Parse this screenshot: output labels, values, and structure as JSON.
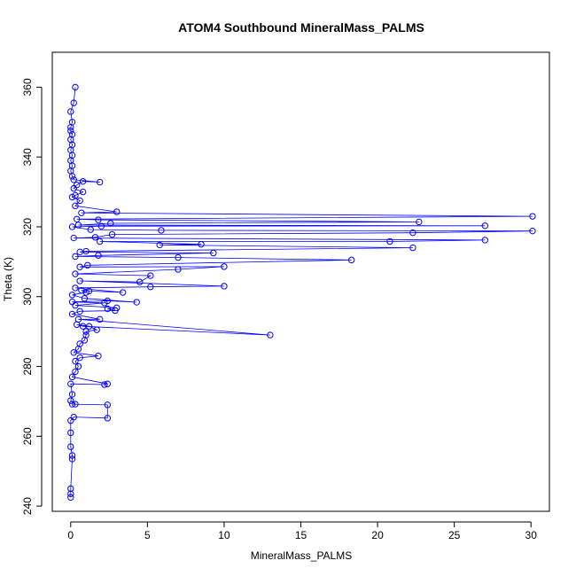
{
  "chart_data": {
    "type": "line",
    "title": "ATOM4 Southbound MineralMass_PALMS",
    "xlabel": "MineralMass_PALMS",
    "ylabel": "Theta (K)",
    "xlim": [
      -1.2,
      31.2
    ],
    "ylim": [
      238.5,
      370
    ],
    "xticks": [
      0,
      5,
      10,
      15,
      20,
      25,
      30
    ],
    "yticks": [
      240,
      260,
      280,
      300,
      320,
      340,
      360
    ],
    "grid": false,
    "legend": "none",
    "series": [
      {
        "color": "#0000ff",
        "marker": "open-circle",
        "points": [
          [
            0.0,
            242.5
          ],
          [
            0.0,
            243.5
          ],
          [
            0.0,
            245.0
          ],
          [
            0.1,
            253.5
          ],
          [
            0.1,
            254.5
          ],
          [
            0.0,
            257.0
          ],
          [
            0.0,
            261.0
          ],
          [
            0.0,
            264.5
          ],
          [
            0.2,
            265.5
          ],
          [
            2.4,
            265.2
          ],
          [
            2.4,
            269.0
          ],
          [
            0.1,
            269.2
          ],
          [
            0.3,
            269.2
          ],
          [
            0.0,
            270.2
          ],
          [
            0.1,
            272.0
          ],
          [
            0.0,
            275.0
          ],
          [
            2.2,
            274.8
          ],
          [
            2.4,
            275.0
          ],
          [
            0.1,
            277.0
          ],
          [
            0.3,
            278.5
          ],
          [
            0.5,
            280.0
          ],
          [
            0.3,
            281.5
          ],
          [
            0.6,
            282.5
          ],
          [
            1.8,
            283.0
          ],
          [
            0.2,
            284.0
          ],
          [
            0.5,
            285.0
          ],
          [
            0.6,
            286.5
          ],
          [
            0.9,
            287.5
          ],
          [
            1.0,
            289.0
          ],
          [
            1.0,
            290.0
          ],
          [
            1.7,
            290.5
          ],
          [
            1.2,
            291.5
          ],
          [
            0.4,
            292.0
          ],
          [
            0.8,
            291.5
          ],
          [
            13.0,
            289.0
          ],
          [
            0.5,
            293.5
          ],
          [
            1.9,
            293.5
          ],
          [
            0.1,
            295.0
          ],
          [
            0.6,
            295.8
          ],
          [
            2.9,
            296.0
          ],
          [
            2.4,
            296.5
          ],
          [
            3.0,
            296.8
          ],
          [
            0.3,
            297.5
          ],
          [
            2.2,
            298.2
          ],
          [
            0.1,
            298.5
          ],
          [
            2.4,
            298.8
          ],
          [
            4.3,
            298.4
          ],
          [
            0.9,
            299.5
          ],
          [
            0.1,
            300.5
          ],
          [
            1.0,
            301.2
          ],
          [
            0.7,
            301.8
          ],
          [
            1.2,
            301.6
          ],
          [
            3.4,
            301.2
          ],
          [
            0.3,
            302.5
          ],
          [
            5.2,
            302.8
          ],
          [
            10.0,
            303.0
          ],
          [
            0.6,
            304.5
          ],
          [
            4.5,
            304.2
          ],
          [
            5.2,
            306.0
          ],
          [
            0.3,
            306.5
          ],
          [
            7.0,
            307.8
          ],
          [
            10.0,
            308.6
          ],
          [
            0.6,
            308.5
          ],
          [
            1.1,
            309.0
          ],
          [
            18.3,
            310.5
          ],
          [
            7.0,
            311.2
          ],
          [
            0.3,
            311.5
          ],
          [
            1.8,
            311.8
          ],
          [
            9.3,
            312.5
          ],
          [
            0.6,
            312.8
          ],
          [
            1.0,
            313.0
          ],
          [
            22.3,
            314.0
          ],
          [
            5.8,
            314.8
          ],
          [
            8.5,
            315.0
          ],
          [
            1.9,
            315.8
          ],
          [
            20.8,
            315.8
          ],
          [
            27.0,
            316.2
          ],
          [
            0.2,
            316.8
          ],
          [
            1.6,
            317.0
          ],
          [
            2.7,
            317.8
          ],
          [
            22.3,
            318.3
          ],
          [
            30.1,
            318.8
          ],
          [
            5.9,
            319.0
          ],
          [
            1.3,
            319.2
          ],
          [
            0.1,
            320.0
          ],
          [
            2.0,
            320.2
          ],
          [
            27.0,
            320.3
          ],
          [
            0.5,
            320.5
          ],
          [
            2.6,
            321.0
          ],
          [
            22.7,
            321.4
          ],
          [
            1.8,
            322.0
          ],
          [
            0.4,
            322.2
          ],
          [
            30.1,
            323.0
          ],
          [
            0.7,
            324.0
          ],
          [
            3.0,
            324.3
          ],
          [
            0.3,
            326.0
          ],
          [
            0.6,
            327.5
          ],
          [
            0.1,
            328.5
          ],
          [
            0.3,
            329.0
          ],
          [
            0.8,
            330.0
          ],
          [
            0.2,
            331.0
          ],
          [
            0.4,
            332.0
          ],
          [
            0.8,
            333.0
          ],
          [
            1.9,
            332.8
          ],
          [
            0.2,
            333.5
          ],
          [
            0.1,
            334.5
          ],
          [
            0.0,
            336.0
          ],
          [
            0.1,
            337.5
          ],
          [
            0.0,
            339.0
          ],
          [
            0.1,
            340.5
          ],
          [
            0.0,
            342.0
          ],
          [
            0.1,
            343.5
          ],
          [
            0.0,
            345.0
          ],
          [
            0.1,
            346.5
          ],
          [
            0.0,
            347.5
          ],
          [
            0.0,
            348.5
          ],
          [
            0.1,
            350.0
          ],
          [
            0.0,
            353.0
          ],
          [
            0.2,
            355.5
          ],
          [
            0.3,
            360.0
          ]
        ]
      }
    ]
  }
}
